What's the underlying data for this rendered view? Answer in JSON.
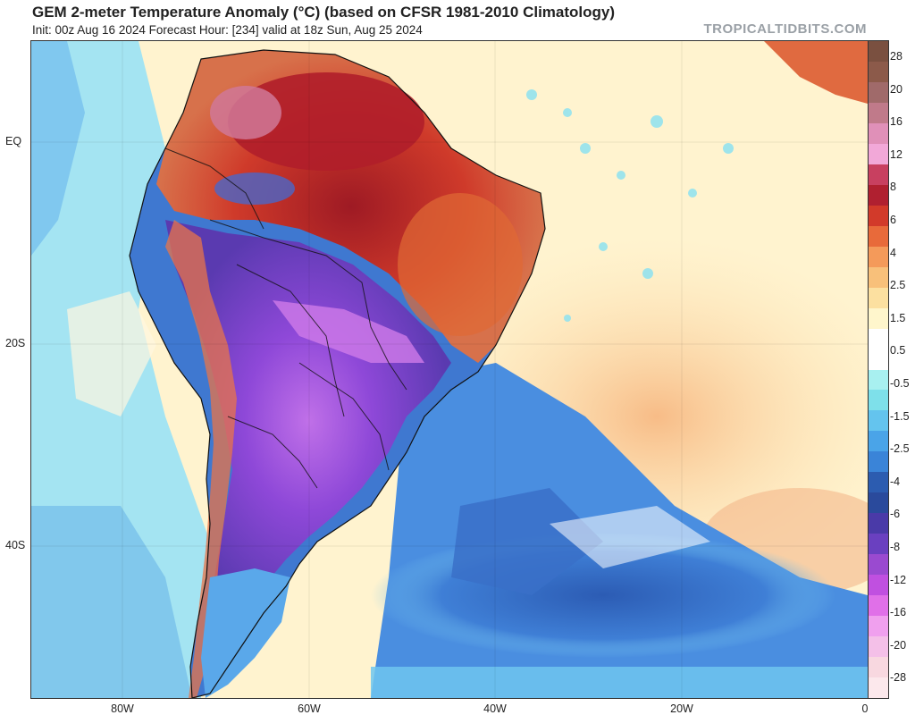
{
  "header": {
    "title": "GEM 2-meter Temperature Anomaly (°C) (based on CFSR 1981-2010 Climatology)",
    "subtitle": "Init: 00z Aug 16 2024   Forecast Hour: [234]   valid at 18z Sun, Aug 25 2024",
    "watermark": "TROPICALTIDBITS.COM"
  },
  "axes": {
    "lat_labels": [
      "EQ",
      "20S",
      "40S"
    ],
    "lon_labels": [
      "80W",
      "60W",
      "40W",
      "20W",
      "0"
    ]
  },
  "colorbar": {
    "labels": [
      "28",
      "20",
      "16",
      "12",
      "8",
      "6",
      "4",
      "2.5",
      "1.5",
      "0.5",
      "-0.5",
      "-1.5",
      "-2.5",
      "-4",
      "-6",
      "-8",
      "-12",
      "-16",
      "-20",
      "-28"
    ],
    "colors": [
      "#7a5040",
      "#8c5a4a",
      "#a06a6a",
      "#c07a8a",
      "#e090b8",
      "#f2a8d8",
      "#c84060",
      "#b02030",
      "#d23a2a",
      "#e86a3a",
      "#f49a5a",
      "#f8c07a",
      "#fce0a0",
      "#fff6cc",
      "#ffffff",
      "#ffffff",
      "#a8f0f0",
      "#7ee0ea",
      "#64c4ee",
      "#4aa4e8",
      "#3a84d8",
      "#2c5cb0",
      "#2a4a9c",
      "#4a3aa8",
      "#6a40c0",
      "#9a4ad0",
      "#c050e0",
      "#e070e8",
      "#f0a0ee",
      "#f4c0e8",
      "#f8d8e0",
      "#fce8ec"
    ]
  },
  "map_legend": {
    "ocean_neutral": "#fff4d6",
    "land_cold_core": "#8a40d8",
    "land_warm_core": "#c8281e"
  }
}
